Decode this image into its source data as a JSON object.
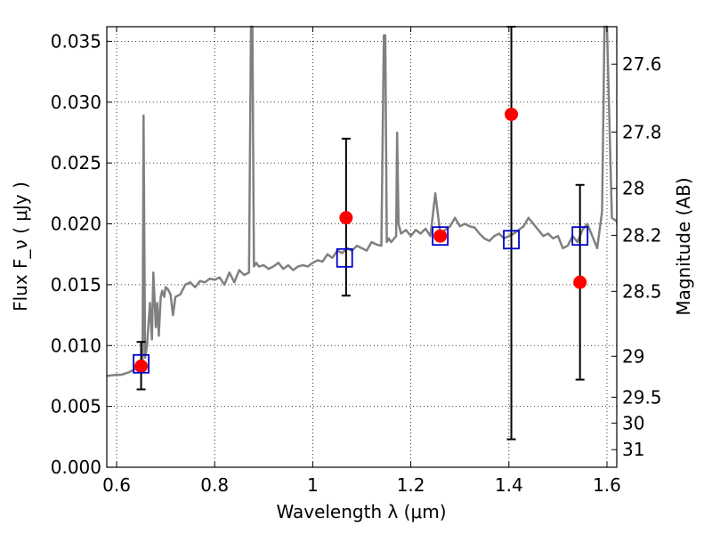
{
  "chart_data": {
    "type": "scatter",
    "xlabel": "Wavelength  λ (μm)",
    "ylabel": "Flux  F_ν  ( μJy )",
    "ylabel_right": "Magnitude (AB)",
    "xlim": [
      0.58,
      1.62
    ],
    "ylim": [
      0.0,
      0.0362
    ],
    "x_ticks": [
      0.6,
      0.8,
      1.0,
      1.2,
      1.4,
      1.6
    ],
    "x_tick_labels": [
      "0.6",
      "0.8",
      "1",
      "1.2",
      "1.4",
      "1.6"
    ],
    "y_ticks": [
      0.0,
      0.005,
      0.01,
      0.015,
      0.02,
      0.025,
      0.03,
      0.035
    ],
    "y_tick_labels": [
      "0.000",
      "0.005",
      "0.010",
      "0.015",
      "0.020",
      "0.025",
      "0.030",
      "0.035"
    ],
    "mag_ticks": [
      27.6,
      27.8,
      28,
      28.2,
      28.5,
      29,
      29.5,
      30,
      31
    ],
    "mag_tick_labels": [
      "27.6",
      "27.8",
      "28",
      "28.2",
      "28.5",
      "29",
      "29.5",
      "30",
      "31"
    ],
    "grid": true,
    "colors": {
      "spectrum": "#808080",
      "observed": "#ff0000",
      "model": "#0000cc",
      "errorbar": "#000000"
    },
    "spectrum": {
      "x": [
        0.58,
        0.6,
        0.61,
        0.625,
        0.635,
        0.645,
        0.65,
        0.653,
        0.655,
        0.658,
        0.662,
        0.668,
        0.672,
        0.675,
        0.68,
        0.683,
        0.686,
        0.69,
        0.693,
        0.697,
        0.7,
        0.705,
        0.71,
        0.715,
        0.72,
        0.73,
        0.74,
        0.75,
        0.76,
        0.77,
        0.78,
        0.79,
        0.8,
        0.81,
        0.82,
        0.83,
        0.84,
        0.85,
        0.86,
        0.87,
        0.874,
        0.877,
        0.88,
        0.885,
        0.89,
        0.9,
        0.91,
        0.92,
        0.93,
        0.94,
        0.95,
        0.96,
        0.97,
        0.98,
        0.99,
        1.0,
        1.01,
        1.02,
        1.03,
        1.04,
        1.05,
        1.06,
        1.07,
        1.08,
        1.09,
        1.1,
        1.11,
        1.12,
        1.13,
        1.14,
        1.145,
        1.148,
        1.151,
        1.155,
        1.16,
        1.17,
        1.172,
        1.175,
        1.18,
        1.19,
        1.2,
        1.21,
        1.22,
        1.23,
        1.24,
        1.25,
        1.26,
        1.27,
        1.28,
        1.29,
        1.3,
        1.31,
        1.32,
        1.33,
        1.34,
        1.35,
        1.36,
        1.37,
        1.38,
        1.39,
        1.4,
        1.41,
        1.42,
        1.43,
        1.44,
        1.45,
        1.46,
        1.47,
        1.48,
        1.49,
        1.5,
        1.51,
        1.52,
        1.53,
        1.54,
        1.55,
        1.56,
        1.57,
        1.58,
        1.585,
        1.59,
        1.595,
        1.6,
        1.61,
        1.62
      ],
      "y": [
        0.0075,
        0.0076,
        0.0076,
        0.0078,
        0.008,
        0.0082,
        0.0085,
        0.0088,
        0.0289,
        0.009,
        0.01,
        0.0135,
        0.0105,
        0.016,
        0.0115,
        0.0135,
        0.0108,
        0.014,
        0.0145,
        0.014,
        0.0148,
        0.0146,
        0.0142,
        0.0125,
        0.014,
        0.0142,
        0.015,
        0.0152,
        0.0148,
        0.0153,
        0.0152,
        0.0155,
        0.0154,
        0.0156,
        0.015,
        0.016,
        0.0152,
        0.0162,
        0.0158,
        0.016,
        0.0362,
        0.0362,
        0.0165,
        0.0168,
        0.0165,
        0.0166,
        0.0163,
        0.0165,
        0.0168,
        0.0163,
        0.0166,
        0.0162,
        0.0165,
        0.0166,
        0.0165,
        0.0168,
        0.017,
        0.0169,
        0.0175,
        0.0172,
        0.0178,
        0.0176,
        0.018,
        0.0178,
        0.0182,
        0.018,
        0.0178,
        0.0185,
        0.0183,
        0.0182,
        0.0355,
        0.0355,
        0.0185,
        0.0188,
        0.0185,
        0.019,
        0.0275,
        0.02,
        0.0192,
        0.0195,
        0.019,
        0.0195,
        0.0192,
        0.0196,
        0.019,
        0.0225,
        0.0192,
        0.0195,
        0.0198,
        0.0205,
        0.0198,
        0.02,
        0.0198,
        0.0197,
        0.0192,
        0.0188,
        0.0186,
        0.019,
        0.0192,
        0.0188,
        0.019,
        0.0192,
        0.0195,
        0.0198,
        0.0205,
        0.02,
        0.0195,
        0.019,
        0.0192,
        0.0188,
        0.019,
        0.018,
        0.0182,
        0.019,
        0.0185,
        0.0195,
        0.02,
        0.019,
        0.018,
        0.0195,
        0.021,
        0.0362,
        0.0362,
        0.0205,
        0.0202
      ]
    },
    "observed": [
      {
        "x": 0.65,
        "y": 0.0083,
        "yerr_low": 0.0064,
        "yerr_high": 0.0103
      },
      {
        "x": 1.068,
        "y": 0.0205,
        "yerr_low": 0.0141,
        "yerr_high": 0.027
      },
      {
        "x": 1.26,
        "y": 0.019,
        "yerr_low": 0.019,
        "yerr_high": 0.019
      },
      {
        "x": 1.405,
        "y": 0.029,
        "yerr_low": 0.0023,
        "yerr_high": 0.0362
      },
      {
        "x": 1.545,
        "y": 0.0152,
        "yerr_low": 0.0072,
        "yerr_high": 0.0232
      }
    ],
    "model": [
      {
        "x": 0.65,
        "y": 0.0085
      },
      {
        "x": 1.065,
        "y": 0.0172
      },
      {
        "x": 1.26,
        "y": 0.019
      },
      {
        "x": 1.405,
        "y": 0.0187
      },
      {
        "x": 1.545,
        "y": 0.019
      }
    ]
  }
}
